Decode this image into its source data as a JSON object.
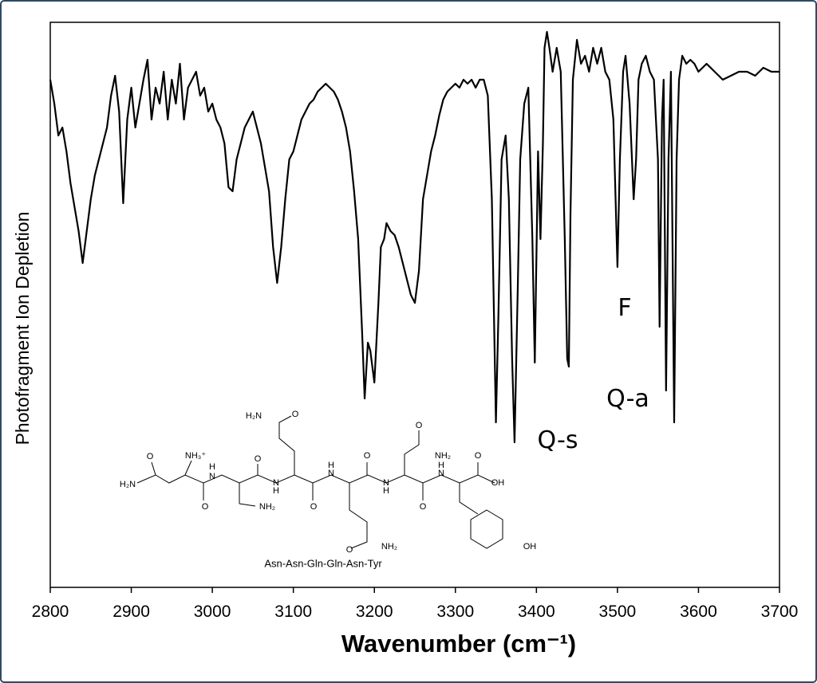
{
  "chart_data": {
    "type": "line",
    "ylabel": "Photofragment Ion Depletion",
    "xlabel": "Wavenumber (cm⁻¹)",
    "color": "#000000",
    "xlim": [
      2800,
      3700
    ],
    "xticks": [
      2800,
      2900,
      3000,
      3100,
      3200,
      3300,
      3400,
      3500,
      3600,
      3700
    ],
    "ylim": [
      0,
      709
    ],
    "annotations": [
      "F",
      "Q-a",
      "Q-s"
    ],
    "x": [
      2800,
      2805,
      2810,
      2815,
      2820,
      2825,
      2830,
      2835,
      2840,
      2845,
      2850,
      2855,
      2860,
      2865,
      2870,
      2875,
      2880,
      2885,
      2890,
      2895,
      2900,
      2905,
      2910,
      2915,
      2920,
      2925,
      2930,
      2935,
      2940,
      2945,
      2950,
      2955,
      2960,
      2965,
      2970,
      2975,
      2980,
      2985,
      2990,
      2995,
      3000,
      3005,
      3010,
      3015,
      3020,
      3025,
      3030,
      3035,
      3040,
      3045,
      3050,
      3055,
      3060,
      3065,
      3070,
      3075,
      3080,
      3085,
      3090,
      3095,
      3100,
      3105,
      3110,
      3115,
      3120,
      3125,
      3130,
      3135,
      3140,
      3145,
      3150,
      3155,
      3160,
      3165,
      3170,
      3175,
      3180,
      3185,
      3188,
      3192,
      3195,
      3200,
      3205,
      3208,
      3212,
      3215,
      3220,
      3225,
      3230,
      3235,
      3240,
      3245,
      3250,
      3255,
      3260,
      3265,
      3270,
      3275,
      3280,
      3285,
      3290,
      3295,
      3300,
      3305,
      3310,
      3315,
      3320,
      3325,
      3330,
      3335,
      3340,
      3345,
      3350,
      3353,
      3357,
      3362,
      3366,
      3370,
      3373,
      3377,
      3380,
      3385,
      3390,
      3395,
      3398,
      3402,
      3405,
      3408,
      3410,
      3413,
      3416,
      3420,
      3425,
      3430,
      3435,
      3438,
      3440,
      3442,
      3445,
      3450,
      3455,
      3460,
      3465,
      3470,
      3475,
      3480,
      3485,
      3490,
      3495,
      3500,
      3503,
      3507,
      3510,
      3515,
      3520,
      3523,
      3526,
      3530,
      3535,
      3540,
      3545,
      3550,
      3552,
      3555,
      3557,
      3560,
      3563,
      3566,
      3570,
      3573,
      3576,
      3580,
      3585,
      3590,
      3595,
      3600,
      3610,
      3620,
      3630,
      3640,
      3650,
      3660,
      3670,
      3680,
      3690,
      3700
    ],
    "values": [
      637,
      607,
      567,
      577,
      547,
      507,
      477,
      447,
      407,
      447,
      487,
      517,
      537,
      557,
      577,
      617,
      642,
      597,
      482,
      587,
      627,
      577,
      607,
      637,
      662,
      587,
      627,
      607,
      647,
      587,
      637,
      607,
      657,
      587,
      627,
      637,
      647,
      617,
      627,
      597,
      607,
      587,
      577,
      557,
      502,
      497,
      537,
      557,
      577,
      587,
      597,
      577,
      557,
      527,
      497,
      427,
      382,
      427,
      487,
      537,
      547,
      567,
      587,
      597,
      607,
      612,
      622,
      627,
      632,
      627,
      622,
      612,
      597,
      577,
      547,
      497,
      437,
      317,
      237,
      307,
      297,
      257,
      357,
      427,
      437,
      457,
      447,
      442,
      427,
      407,
      387,
      367,
      357,
      397,
      487,
      517,
      547,
      567,
      592,
      612,
      622,
      627,
      632,
      627,
      637,
      632,
      637,
      627,
      637,
      637,
      617,
      487,
      207,
      337,
      537,
      567,
      487,
      287,
      182,
      377,
      537,
      607,
      627,
      437,
      282,
      547,
      437,
      557,
      677,
      697,
      677,
      647,
      677,
      647,
      437,
      287,
      277,
      467,
      637,
      687,
      657,
      667,
      647,
      677,
      657,
      677,
      647,
      637,
      587,
      402,
      537,
      647,
      667,
      607,
      487,
      537,
      637,
      657,
      667,
      647,
      637,
      537,
      327,
      587,
      637,
      247,
      537,
      647,
      207,
      537,
      637,
      667,
      657,
      662,
      657,
      647,
      657,
      647,
      637,
      642,
      647,
      647,
      642,
      652,
      647,
      647
    ]
  },
  "structure": {
    "name": "Asn-Asn-Gln-Gln-Asn-Tyr",
    "labels": [
      "O",
      "NH₃⁺",
      "H₂N",
      "H",
      "N",
      "O",
      "O",
      "H₂N",
      "O",
      "H",
      "N",
      "NH₂",
      "O",
      "H",
      "N",
      "O",
      "H",
      "N",
      "O",
      "NH₂",
      "O",
      "H",
      "N",
      "O",
      "OH",
      "O",
      "NH₂",
      "OH"
    ]
  }
}
